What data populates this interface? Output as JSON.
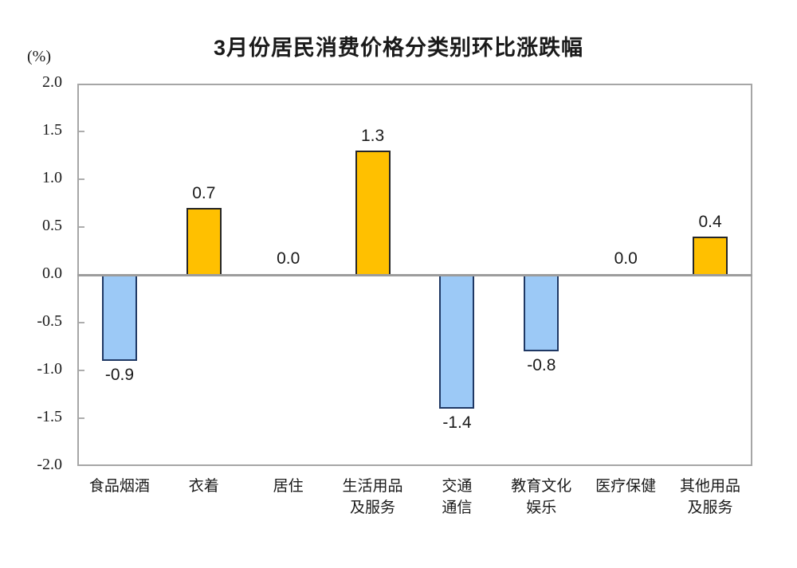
{
  "chart_data": {
    "type": "bar",
    "title": "3月份居民消费价格分类别环比涨跌幅",
    "unit_label": "(%)",
    "categories": [
      "食品烟酒",
      "衣着",
      "居住",
      "生活用品及服务",
      "交通通信",
      "教育文化娱乐",
      "医疗保健",
      "其他用品及服务"
    ],
    "category_lines": [
      [
        "食品烟酒"
      ],
      [
        "衣着"
      ],
      [
        "居住"
      ],
      [
        "生活用品",
        "及服务"
      ],
      [
        "交通",
        "通信"
      ],
      [
        "教育文化",
        "娱乐"
      ],
      [
        "医疗保健"
      ],
      [
        "其他用品",
        "及服务"
      ]
    ],
    "values": [
      -0.9,
      0.7,
      0.0,
      1.3,
      -1.4,
      -0.8,
      0.0,
      0.4
    ],
    "data_labels": [
      "-0.9",
      "0.7",
      "0.0",
      "1.3",
      "-1.4",
      "-0.8",
      "0.0",
      "0.4"
    ],
    "xlabel": "",
    "ylabel": "(%)",
    "ylim": [
      -2.0,
      2.0
    ],
    "ytick_step": 0.5,
    "ytick_labels": [
      "2.0",
      "1.5",
      "1.0",
      "0.5",
      "0.0",
      "-0.5",
      "-1.0",
      "-1.5",
      "-2.0"
    ],
    "grid": false,
    "legend": "none",
    "colors": {
      "positive_fill": "#FFC000",
      "positive_border": "#262626",
      "negative_fill": "#9CC9F6",
      "negative_border": "#1F3864",
      "axis_frame": "#A6A6A6",
      "zero_line": "#9C9C9C",
      "text": "#1A1A1A"
    }
  }
}
